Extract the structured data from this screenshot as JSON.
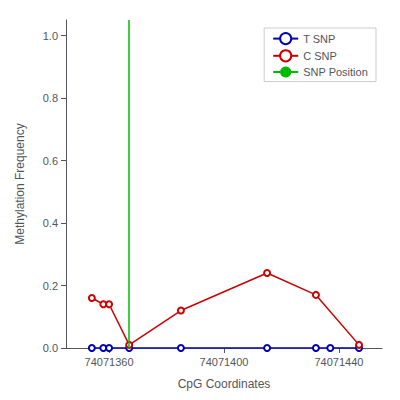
{
  "chart_data": {
    "type": "line",
    "xlabel": "CpG Coordinates",
    "ylabel": "Methylation Frequency",
    "series": [
      {
        "name": "T SNP",
        "color": "#0000bb",
        "marker": "circle",
        "x": [
          74071354,
          74071358,
          74071360,
          74071367,
          74071385,
          74071415,
          74071432,
          74071437,
          74071447
        ],
        "values": [
          0.0,
          0.0,
          0.0,
          0.0,
          0.0,
          0.0,
          0.0,
          0.0,
          0.0
        ]
      },
      {
        "name": "C SNP",
        "color": "#cc0000",
        "marker": "circle",
        "x": [
          74071354,
          74071358,
          74071360,
          74071367,
          74071385,
          74071415,
          74071432,
          74071447
        ],
        "values": [
          0.16,
          0.14,
          0.14,
          0.01,
          0.12,
          0.24,
          0.17,
          0.01
        ]
      },
      {
        "name": "SNP Position",
        "type": "vline",
        "color": "#00bb00",
        "x": [
          74071367
        ]
      }
    ],
    "xlim": [
      74071345,
      74071455
    ],
    "xticks": [
      74071360,
      74071400,
      74071440
    ],
    "ylim": [
      0.0,
      1.05
    ],
    "yticks": [
      {
        "value": 0.0,
        "label": "0.0"
      },
      0.2,
      0.4,
      0.6,
      0.8,
      {
        "value": 1.0,
        "label": "1.0"
      }
    ],
    "grid": false,
    "legend": "upper right"
  }
}
